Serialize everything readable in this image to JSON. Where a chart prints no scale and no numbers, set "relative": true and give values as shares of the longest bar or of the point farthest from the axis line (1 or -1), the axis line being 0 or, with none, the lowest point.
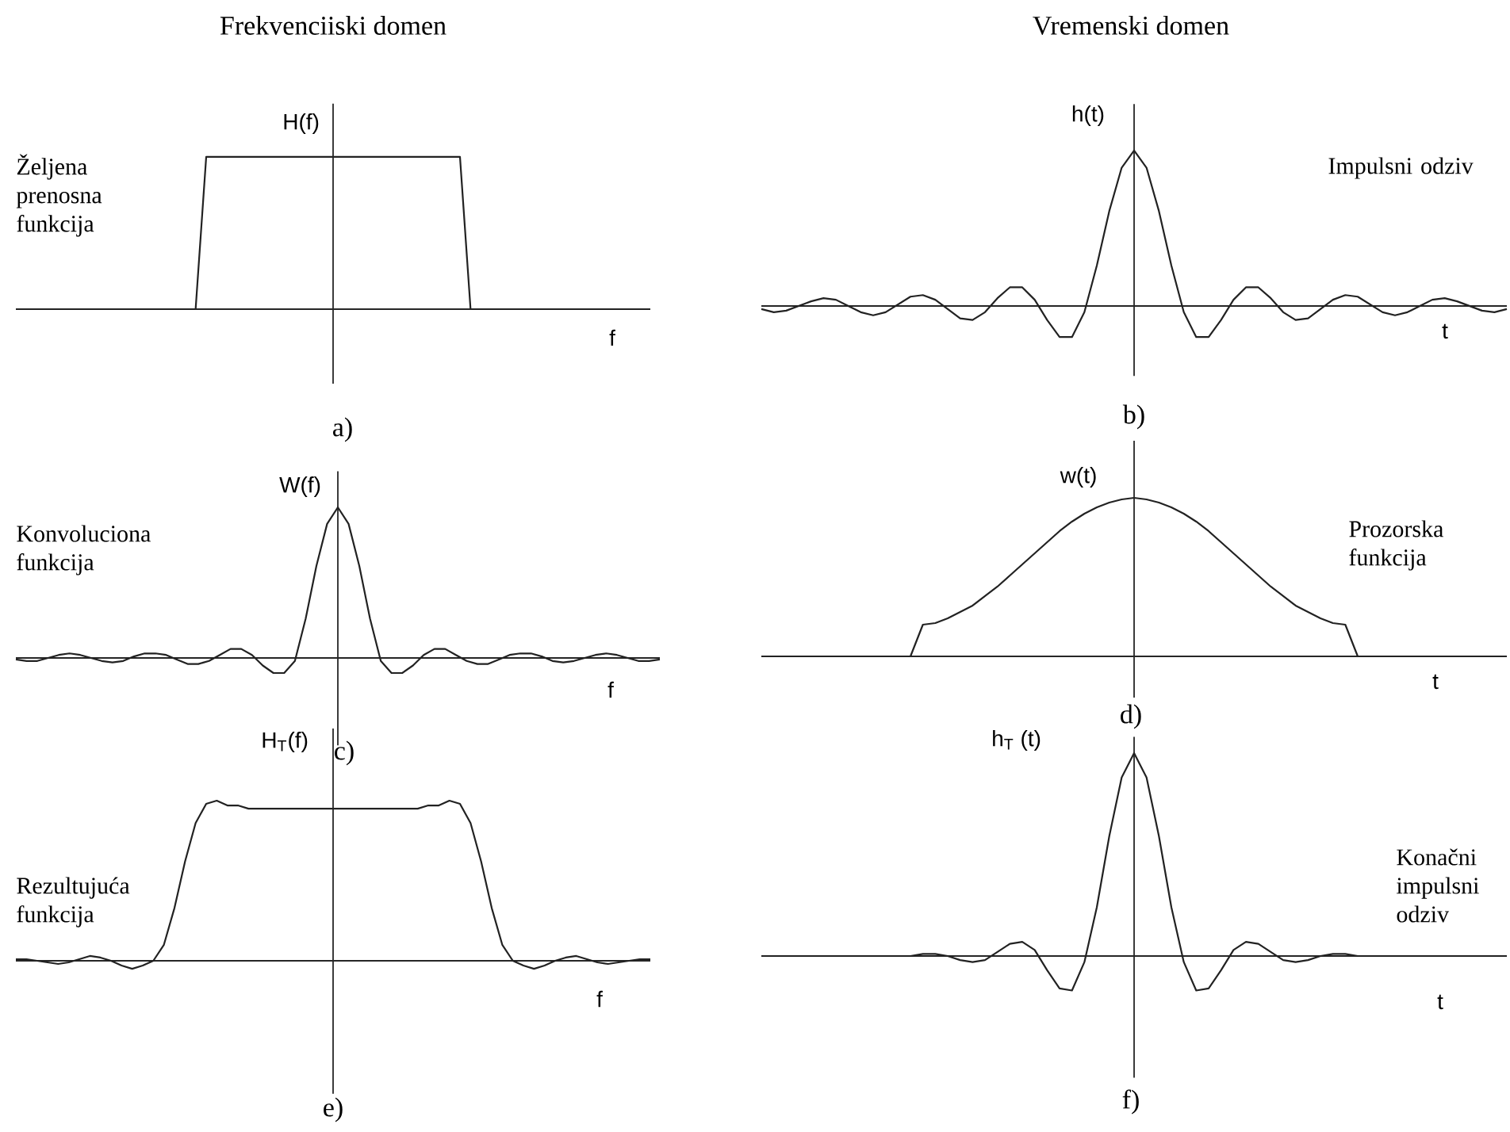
{
  "chart_data": [
    {
      "type": "line",
      "relative": true,
      "title": "Frekvenciiski domen",
      "ylabel": "H(f)",
      "xlabel": "f",
      "annotations": [
        "Željena prenosna funkcija",
        "a)"
      ],
      "color": "#222222",
      "categories": [
        null,
        null,
        null,
        null,
        null,
        null,
        null,
        null,
        null,
        null,
        null,
        null,
        null,
        null,
        null,
        null,
        null,
        null,
        null,
        null,
        null,
        null,
        null,
        null,
        null,
        null,
        null,
        null,
        null,
        null,
        null,
        null,
        null,
        null,
        null,
        null,
        null,
        null,
        null,
        null,
        null,
        null,
        null,
        null,
        null,
        null,
        null,
        null,
        null,
        null,
        null,
        null,
        null,
        null,
        null,
        null,
        null,
        null,
        null,
        null,
        null
      ],
      "values": [
        0,
        0,
        0,
        0,
        0,
        0,
        0,
        0,
        0,
        0,
        0,
        0,
        0,
        0,
        0,
        0,
        0,
        0,
        1,
        1,
        1,
        1,
        1,
        1,
        1,
        1,
        1,
        1,
        1,
        1,
        1,
        1,
        1,
        1,
        1,
        1,
        1,
        1,
        1,
        1,
        1,
        1,
        1,
        0,
        0,
        0,
        0,
        0,
        0,
        0,
        0,
        0,
        0,
        0,
        0,
        0,
        0,
        0,
        0,
        0,
        0
      ]
    },
    {
      "type": "line",
      "relative": true,
      "title": "Vremenski domen",
      "ylabel": "h(t)",
      "xlabel": "t",
      "annotations": [
        "Impulsni odziv",
        "b)"
      ],
      "color": "#222222",
      "categories": [
        null,
        null,
        null,
        null,
        null,
        null,
        null,
        null,
        null,
        null,
        null,
        null,
        null,
        null,
        null,
        null,
        null,
        null,
        null,
        null,
        null,
        null,
        null,
        null,
        null,
        null,
        null,
        null,
        null,
        null,
        null,
        null,
        null,
        null,
        null,
        null,
        null,
        null,
        null,
        null,
        null,
        null,
        null,
        null,
        null,
        null,
        null,
        null,
        null,
        null,
        null,
        null,
        null,
        null,
        null,
        null,
        null,
        null,
        null,
        null,
        null
      ],
      "values": [
        -0.02,
        -0.04,
        -0.03,
        0,
        0.03,
        0.05,
        0.04,
        0,
        -0.04,
        -0.06,
        -0.04,
        0.01,
        0.06,
        0.07,
        0.04,
        -0.02,
        -0.08,
        -0.09,
        -0.04,
        0.05,
        0.12,
        0.12,
        0.04,
        -0.09,
        -0.2,
        -0.2,
        -0.04,
        0.26,
        0.61,
        0.89,
        1,
        0.89,
        0.61,
        0.26,
        -0.04,
        -0.2,
        -0.2,
        -0.09,
        0.04,
        0.12,
        0.12,
        0.05,
        -0.04,
        -0.09,
        -0.08,
        -0.02,
        0.04,
        0.07,
        0.06,
        0.01,
        -0.04,
        -0.06,
        -0.04,
        0,
        0.04,
        0.05,
        0.03,
        0,
        -0.03,
        -0.04,
        -0.02
      ]
    },
    {
      "type": "line",
      "relative": true,
      "ylabel": "W(f)",
      "xlabel": "f",
      "annotations": [
        "Konvoluciona funkcija",
        "c)"
      ],
      "color": "#222222",
      "categories": [
        null,
        null,
        null,
        null,
        null,
        null,
        null,
        null,
        null,
        null,
        null,
        null,
        null,
        null,
        null,
        null,
        null,
        null,
        null,
        null,
        null,
        null,
        null,
        null,
        null,
        null,
        null,
        null,
        null,
        null,
        null,
        null,
        null,
        null,
        null,
        null,
        null,
        null,
        null,
        null,
        null,
        null,
        null,
        null,
        null,
        null,
        null,
        null,
        null,
        null,
        null,
        null,
        null,
        null,
        null,
        null,
        null,
        null,
        null,
        null,
        null
      ],
      "values": [
        -0.01,
        -0.02,
        -0.02,
        0,
        0.02,
        0.03,
        0.02,
        0,
        -0.02,
        -0.03,
        -0.02,
        0.01,
        0.03,
        0.03,
        0.02,
        -0.01,
        -0.04,
        -0.04,
        -0.02,
        0.02,
        0.06,
        0.06,
        0.02,
        -0.05,
        -0.1,
        -0.1,
        -0.02,
        0.26,
        0.61,
        0.89,
        1,
        0.89,
        0.61,
        0.26,
        -0.02,
        -0.1,
        -0.1,
        -0.05,
        0.02,
        0.06,
        0.06,
        0.02,
        -0.02,
        -0.04,
        -0.04,
        -0.01,
        0.02,
        0.03,
        0.03,
        0.01,
        -0.02,
        -0.03,
        -0.02,
        0,
        0.02,
        0.03,
        0.02,
        0,
        -0.02,
        -0.02,
        -0.01
      ]
    },
    {
      "type": "line",
      "relative": true,
      "ylabel": "w(t)",
      "xlabel": "t",
      "annotations": [
        "Prozorska funkcija",
        "d)"
      ],
      "color": "#222222",
      "categories": [
        null,
        null,
        null,
        null,
        null,
        null,
        null,
        null,
        null,
        null,
        null,
        null,
        null,
        null,
        null,
        null,
        null,
        null,
        null,
        null,
        null,
        null,
        null,
        null,
        null,
        null,
        null,
        null,
        null,
        null,
        null,
        null,
        null,
        null,
        null,
        null,
        null,
        null,
        null,
        null,
        null,
        null,
        null,
        null,
        null,
        null,
        null,
        null,
        null,
        null,
        null,
        null,
        null,
        null,
        null,
        null,
        null,
        null,
        null,
        null,
        null
      ],
      "values": [
        0,
        0,
        0,
        0,
        0,
        0,
        0,
        0,
        0,
        0,
        0,
        0,
        0,
        0.2,
        0.21,
        0.24,
        0.28,
        0.32,
        0.38,
        0.44,
        0.51,
        0.58,
        0.65,
        0.72,
        0.79,
        0.85,
        0.9,
        0.94,
        0.97,
        0.99,
        1,
        0.99,
        0.97,
        0.94,
        0.9,
        0.85,
        0.79,
        0.72,
        0.65,
        0.58,
        0.51,
        0.44,
        0.38,
        0.32,
        0.28,
        0.24,
        0.21,
        0.2,
        0,
        0,
        0,
        0,
        0,
        0,
        0,
        0,
        0,
        0,
        0,
        0,
        0
      ]
    },
    {
      "type": "line",
      "relative": true,
      "ylabel": "H$_{T}$(f)",
      "xlabel": "f",
      "annotations": [
        "Rezultujuća funkcija",
        "e)"
      ],
      "color": "#222222",
      "categories": [
        null,
        null,
        null,
        null,
        null,
        null,
        null,
        null,
        null,
        null,
        null,
        null,
        null,
        null,
        null,
        null,
        null,
        null,
        null,
        null,
        null,
        null,
        null,
        null,
        null,
        null,
        null,
        null,
        null,
        null,
        null,
        null,
        null,
        null,
        null,
        null,
        null,
        null,
        null,
        null,
        null,
        null,
        null,
        null,
        null,
        null,
        null,
        null,
        null,
        null,
        null,
        null,
        null,
        null,
        null,
        null,
        null,
        null,
        null,
        null,
        null
      ],
      "values": [
        0.01,
        0.01,
        0,
        -0.01,
        -0.02,
        -0.01,
        0.01,
        0.03,
        0.02,
        0,
        -0.03,
        -0.05,
        -0.03,
        0,
        0.1,
        0.33,
        0.62,
        0.86,
        0.98,
        1,
        0.97,
        0.97,
        0.95,
        0.95,
        0.95,
        0.95,
        0.95,
        0.95,
        0.95,
        0.95,
        0.95,
        0.95,
        0.95,
        0.95,
        0.95,
        0.95,
        0.95,
        0.95,
        0.95,
        0.97,
        0.97,
        1,
        0.98,
        0.86,
        0.62,
        0.33,
        0.1,
        0,
        -0.03,
        -0.05,
        -0.03,
        0,
        0.02,
        0.03,
        0.01,
        -0.01,
        -0.02,
        -0.01,
        0,
        0.01,
        0.01
      ]
    },
    {
      "type": "line",
      "relative": true,
      "ylabel": "h$_{T}$ (t)",
      "xlabel": "t",
      "annotations": [
        "Konačni impulsni odziv",
        "f)"
      ],
      "color": "#222222",
      "categories": [
        null,
        null,
        null,
        null,
        null,
        null,
        null,
        null,
        null,
        null,
        null,
        null,
        null,
        null,
        null,
        null,
        null,
        null,
        null,
        null,
        null,
        null,
        null,
        null,
        null,
        null,
        null,
        null,
        null,
        null,
        null,
        null,
        null,
        null,
        null,
        null,
        null,
        null,
        null,
        null,
        null,
        null,
        null,
        null,
        null,
        null,
        null,
        null,
        null,
        null,
        null,
        null,
        null,
        null,
        null,
        null,
        null,
        null,
        null,
        null,
        null
      ],
      "values": [
        0,
        0,
        0,
        0,
        0,
        0,
        0,
        0,
        0,
        0,
        0,
        0,
        0,
        0.01,
        0.01,
        0,
        -0.02,
        -0.03,
        -0.02,
        0.02,
        0.06,
        0.07,
        0.03,
        -0.07,
        -0.16,
        -0.17,
        -0.03,
        0.24,
        0.59,
        0.88,
        1,
        0.88,
        0.59,
        0.24,
        -0.03,
        -0.17,
        -0.16,
        -0.07,
        0.03,
        0.07,
        0.06,
        0.02,
        -0.02,
        -0.03,
        -0.02,
        0,
        0.01,
        0.01,
        0,
        0,
        0,
        0,
        0,
        0,
        0,
        0,
        0,
        0,
        0,
        0,
        0
      ]
    }
  ]
}
